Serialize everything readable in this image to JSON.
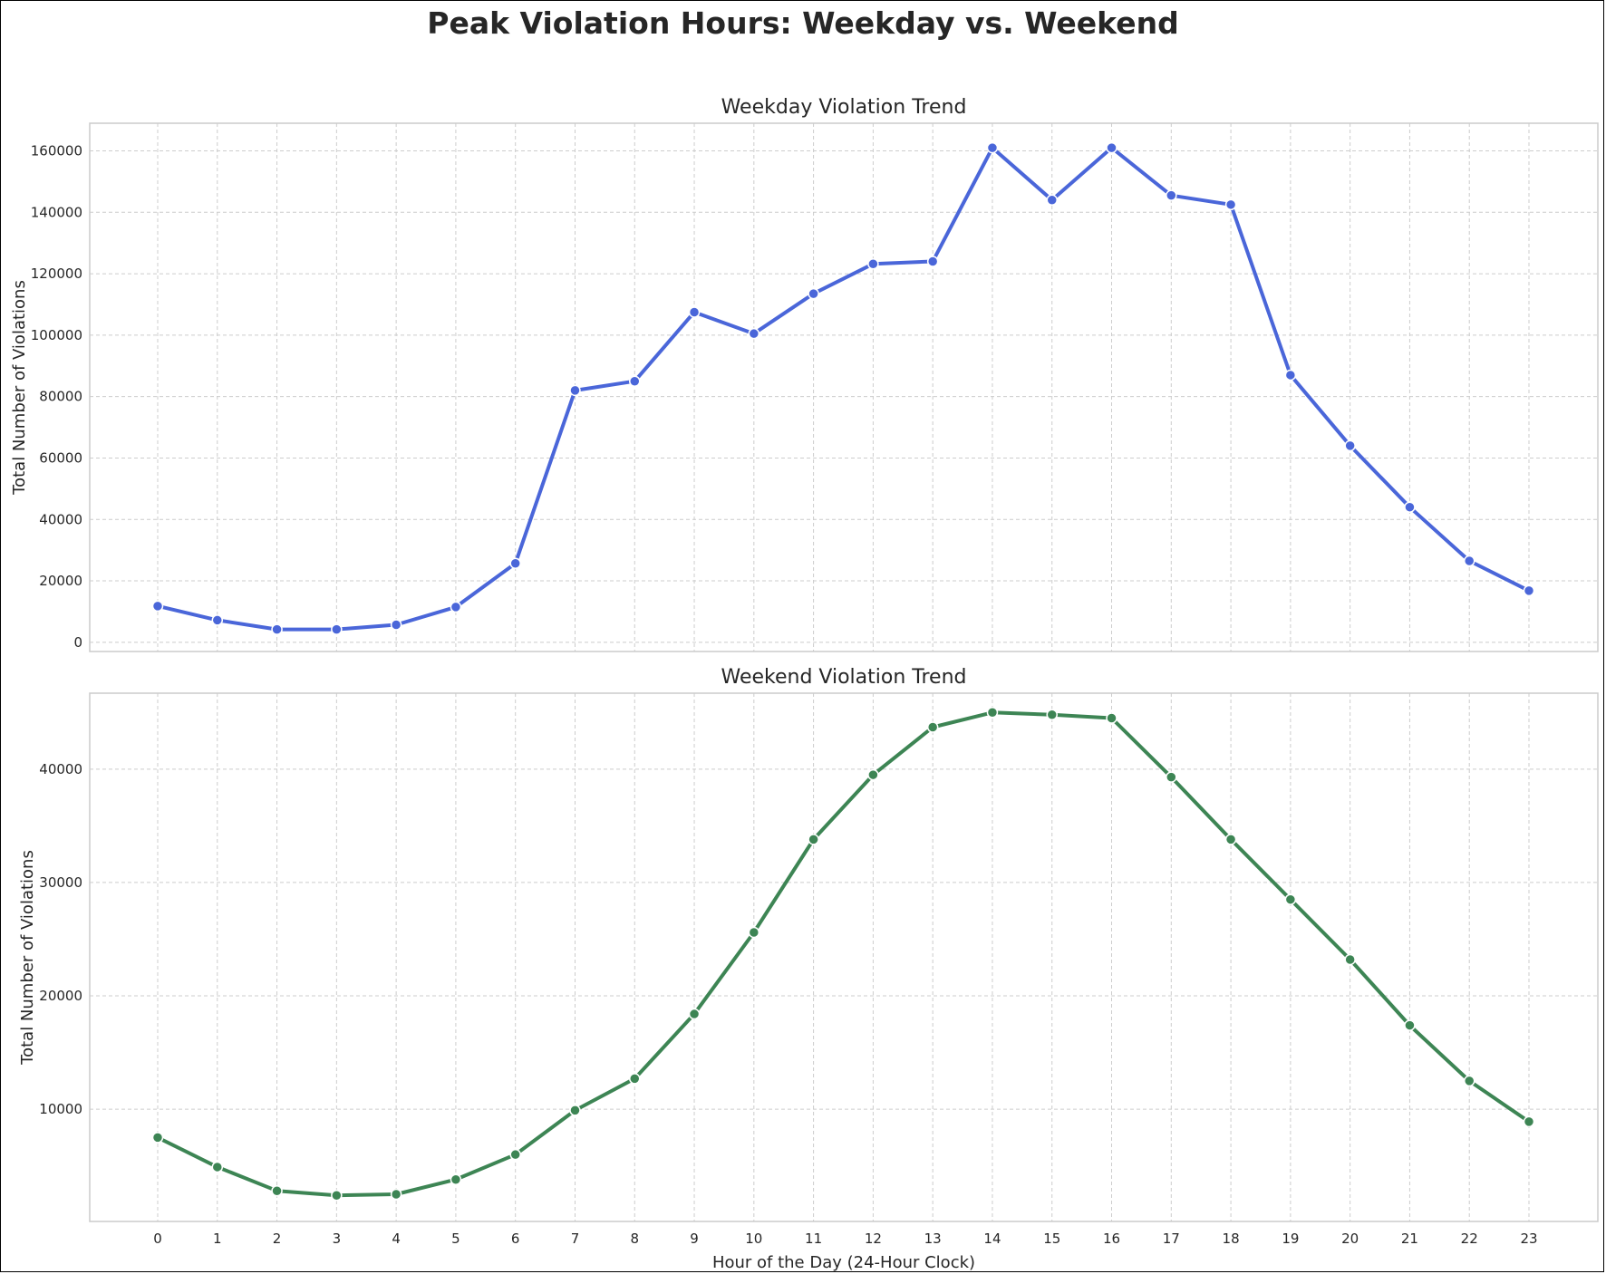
{
  "title": "Peak Violation Hours: Weekday vs. Weekend",
  "chart_data": [
    {
      "type": "line",
      "title": "Weekday Violation Trend",
      "xlabel": "",
      "ylabel": "Total Number of Violations",
      "x": [
        0,
        1,
        2,
        3,
        4,
        5,
        6,
        7,
        8,
        9,
        10,
        11,
        12,
        13,
        14,
        15,
        16,
        17,
        18,
        19,
        20,
        21,
        22,
        23
      ],
      "series": [
        {
          "color": "#4a66d9",
          "values": [
            11800,
            7200,
            4200,
            4200,
            5700,
            11500,
            25700,
            82000,
            85000,
            107500,
            100500,
            113500,
            123200,
            124000,
            161000,
            144000,
            161000,
            145500,
            142500,
            87000,
            64000,
            44000,
            26500,
            16800
          ]
        }
      ],
      "ylim": [
        -3000,
        169000
      ],
      "yticks": [
        0,
        20000,
        40000,
        60000,
        80000,
        100000,
        120000,
        140000,
        160000
      ],
      "grid": true
    },
    {
      "type": "line",
      "title": "Weekend Violation Trend",
      "xlabel": "Hour of the Day (24-Hour Clock)",
      "ylabel": "Total Number of Violations",
      "x": [
        0,
        1,
        2,
        3,
        4,
        5,
        6,
        7,
        8,
        9,
        10,
        11,
        12,
        13,
        14,
        15,
        16,
        17,
        18,
        19,
        20,
        21,
        22,
        23
      ],
      "series": [
        {
          "color": "#3d8554",
          "values": [
            7500,
            4900,
            2800,
            2400,
            2500,
            3800,
            6000,
            9900,
            12700,
            18400,
            25600,
            33800,
            39500,
            43700,
            45000,
            44800,
            44500,
            39300,
            33800,
            28500,
            23200,
            17400,
            12500,
            8900
          ]
        }
      ],
      "ylim": [
        100,
        46700
      ],
      "yticks": [
        10000,
        20000,
        30000,
        40000
      ],
      "grid": true
    }
  ]
}
